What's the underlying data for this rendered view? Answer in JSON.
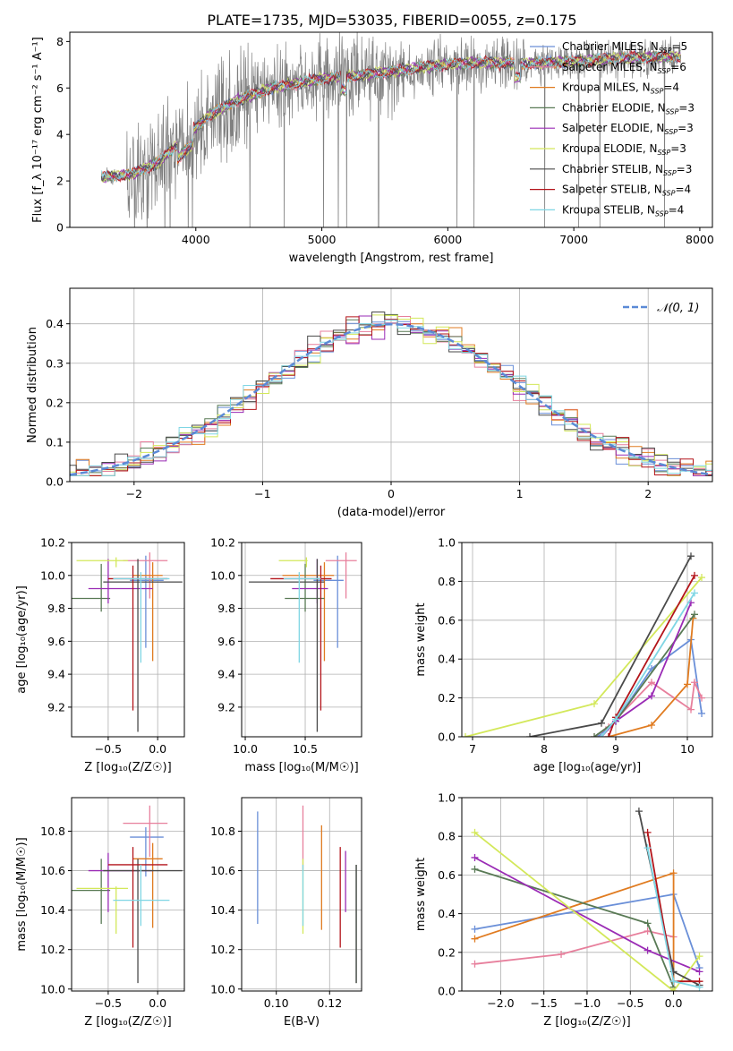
{
  "colors": {
    "chabrier_miles": "#6a8fd8",
    "salpeter_miles": "#e77f9c",
    "kroupa_miles": "#e07b20",
    "chabrier_elodie": "#597a55",
    "salpeter_elodie": "#9a2bb5",
    "kroupa_elodie": "#d3e85a",
    "chabrier_stelib": "#4a4a4a",
    "salpeter_stelib": "#b3141a",
    "kroupa_stelib": "#7fd6e4",
    "data": "#808080",
    "normal": "#5b8ad6"
  },
  "chart_data": [
    {
      "id": "spectrum",
      "type": "line",
      "title": "PLATE=1735, MJD=53035, FIBERID=0055, z=0.175",
      "xlabel": "wavelength [Angstrom, rest frame]",
      "ylabel": "Flux [f_λ 10⁻¹⁷ erg cm⁻² s⁻¹ A⁻¹]",
      "xlim": [
        3000,
        8100
      ],
      "ylim": [
        0,
        8.4
      ],
      "xticks": [
        4000,
        5000,
        6000,
        7000,
        8000
      ],
      "yticks": [
        0,
        2,
        4,
        6,
        8
      ],
      "legend_position": "top-right",
      "continuum": {
        "x": [
          3250,
          3500,
          3700,
          3900,
          4100,
          4300,
          4600,
          5000,
          5400,
          5800,
          6200,
          6600,
          7000,
          7400,
          7800
        ],
        "y": [
          2.15,
          2.3,
          2.8,
          3.8,
          4.8,
          5.4,
          6.0,
          6.4,
          6.6,
          6.9,
          7.1,
          7.05,
          7.15,
          7.3,
          7.35
        ]
      },
      "series": [
        {
          "name": "Chabrier MILES, N",
          "sub": "SSP",
          "suffix": "=5",
          "color_key": "chabrier_miles"
        },
        {
          "name": "Salpeter MILES, N",
          "sub": "SSP",
          "suffix": "=6",
          "color_key": "salpeter_miles"
        },
        {
          "name": "Kroupa MILES, N",
          "sub": "SSP",
          "suffix": "=4",
          "color_key": "kroupa_miles"
        },
        {
          "name": "Chabrier ELODIE, N",
          "sub": "SSP",
          "suffix": "=3",
          "color_key": "chabrier_elodie"
        },
        {
          "name": "Salpeter ELODIE, N",
          "sub": "SSP",
          "suffix": "=3",
          "color_key": "salpeter_elodie"
        },
        {
          "name": "Kroupa ELODIE, N",
          "sub": "SSP",
          "suffix": "=3",
          "color_key": "kroupa_elodie"
        },
        {
          "name": "Chabrier STELIB, N",
          "sub": "SSP",
          "suffix": "=3",
          "color_key": "chabrier_stelib"
        },
        {
          "name": "Salpeter STELIB, N",
          "sub": "SSP",
          "suffix": "=4",
          "color_key": "salpeter_stelib"
        },
        {
          "name": "Kroupa STELIB, N",
          "sub": "SSP",
          "suffix": "=4",
          "color_key": "kroupa_stelib"
        }
      ]
    },
    {
      "id": "residuals",
      "type": "histogram",
      "xlabel": "(data-model)/error",
      "ylabel": "Normed distribution",
      "xlim": [
        -2.5,
        2.5
      ],
      "ylim": [
        0,
        0.49
      ],
      "xticks": [
        -2,
        -1,
        0,
        1,
        2
      ],
      "yticks": [
        0.0,
        0.1,
        0.2,
        0.3,
        0.4
      ],
      "grid": true,
      "legend_position": "top-right",
      "normal_label": "𝒩(0, 1)",
      "bin_width": 0.1
    },
    {
      "id": "age_vs_Z",
      "type": "errorbar",
      "xlabel": "Z [log₁₀(Z/Z☉)]",
      "ylabel": "age  [log₁₀(age/yr)]",
      "xlim": [
        -0.87,
        0.27
      ],
      "ylim": [
        9.02,
        10.2
      ],
      "xticks": [
        -0.5,
        0.0
      ],
      "yticks": [
        9.2,
        9.4,
        9.6,
        9.8,
        10.0,
        10.2
      ],
      "grid": true
    },
    {
      "id": "age_vs_mass",
      "type": "errorbar",
      "xlabel": "mass [log₁₀(M/M☉)]",
      "xlim": [
        9.97,
        10.97
      ],
      "ylim": [
        9.02,
        10.2
      ],
      "xticks": [
        10.0,
        10.5
      ],
      "yticks": [
        9.2,
        9.4,
        9.6,
        9.8,
        10.0,
        10.2
      ],
      "grid": true
    },
    {
      "id": "massweight_vs_age",
      "type": "line",
      "xlabel": "age  [log₁₀(age/yr)]",
      "ylabel": "mass weight",
      "xlim": [
        6.85,
        10.35
      ],
      "ylim": [
        0,
        1.0
      ],
      "xticks": [
        7,
        8,
        9,
        10
      ],
      "yticks": [
        0.0,
        0.2,
        0.4,
        0.6,
        0.8,
        1.0
      ],
      "grid": true
    },
    {
      "id": "mass_vs_Z",
      "type": "errorbar",
      "xlabel": "Z [log₁₀(Z/Z☉)]",
      "ylabel": "mass [log₁₀(M/M☉)]",
      "xlim": [
        -0.87,
        0.27
      ],
      "ylim": [
        9.99,
        10.97
      ],
      "xticks": [
        -0.5,
        0.0
      ],
      "yticks": [
        10.0,
        10.2,
        10.4,
        10.6,
        10.8
      ],
      "grid": true
    },
    {
      "id": "mass_vs_ebv",
      "type": "errorbar",
      "xlabel": "E(B-V)",
      "xlim": [
        0.087,
        0.132
      ],
      "ylim": [
        9.99,
        10.97
      ],
      "xticks": [
        0.1,
        0.12
      ],
      "yticks": [
        10.0,
        10.2,
        10.4,
        10.6,
        10.8
      ],
      "grid": true
    },
    {
      "id": "massweight_vs_Z",
      "type": "line",
      "xlabel": "Z [log₁₀(Z/Z☉)]",
      "ylabel": "mass weight",
      "xlim": [
        -2.45,
        0.45
      ],
      "ylim": [
        0,
        1.0
      ],
      "xticks": [
        -2.0,
        -1.5,
        -1.0,
        -0.5,
        0.0
      ],
      "yticks": [
        0.0,
        0.2,
        0.4,
        0.6,
        0.8,
        1.0
      ],
      "grid": true
    }
  ],
  "fits": [
    {
      "key": "chabrier_miles",
      "age": 9.97,
      "age_lo": 9.56,
      "age_hi": 10.12,
      "z": -0.12,
      "z_lo": -0.28,
      "z_hi": 0.06,
      "mass": 10.77,
      "mass_lo": 10.57,
      "mass_hi": 10.82,
      "ebv": 0.093,
      "ebv_lo": 10.33,
      "ebv_hi": 10.9,
      "ages": [
        8.75,
        9.0,
        9.5,
        10.05,
        10.2
      ],
      "aw": [
        0.0,
        0.08,
        0.35,
        0.5,
        0.12
      ],
      "zs": [
        -2.3,
        0.0,
        0.3
      ],
      "zw": [
        0.32,
        0.5,
        0.12
      ]
    },
    {
      "key": "salpeter_miles",
      "age": 10.09,
      "age_lo": 9.86,
      "age_hi": 10.14,
      "z": -0.08,
      "z_lo": -0.35,
      "z_hi": 0.1,
      "mass": 10.84,
      "mass_lo": 10.67,
      "mass_hi": 10.93,
      "ebv": 0.11,
      "ebv_lo": 10.6,
      "ebv_hi": 10.93,
      "ages": [
        8.7,
        8.9,
        9.5,
        10.05,
        10.1,
        10.2
      ],
      "aw": [
        0.0,
        0.05,
        0.28,
        0.14,
        0.28,
        0.2
      ],
      "zs": [
        -2.3,
        -1.3,
        -0.3,
        0.0
      ],
      "zw": [
        0.14,
        0.19,
        0.31,
        0.28
      ]
    },
    {
      "key": "kroupa_miles",
      "age": 10.0,
      "age_lo": 9.48,
      "age_hi": 10.08,
      "z": -0.05,
      "z_lo": -0.25,
      "z_hi": 0.05,
      "mass": 10.66,
      "mass_lo": 10.31,
      "mass_hi": 10.74,
      "ebv": 0.117,
      "ebv_lo": 10.3,
      "ebv_hi": 10.83,
      "ages": [
        8.9,
        9.5,
        10.0,
        10.08
      ],
      "aw": [
        0.0,
        0.06,
        0.27,
        0.61
      ],
      "zs": [
        -2.3,
        0.0,
        0.0
      ],
      "zw": [
        0.27,
        0.61,
        0.0
      ]
    },
    {
      "key": "chabrier_elodie",
      "age": 9.86,
      "age_lo": 9.78,
      "age_hi": 10.07,
      "z": -0.57,
      "z_lo": -0.87,
      "z_hi": -0.48,
      "mass": 10.5,
      "mass_lo": 10.33,
      "mass_hi": 10.66,
      "ebv": 0.13,
      "ebv_lo": 10.03,
      "ebv_hi": 10.63,
      "ages": [
        8.7,
        9.0,
        10.1
      ],
      "aw": [
        0.0,
        0.08,
        0.63
      ],
      "zs": [
        -2.3,
        -0.3,
        0.0
      ],
      "zw": [
        0.63,
        0.35,
        0.02
      ]
    },
    {
      "key": "salpeter_elodie",
      "age": 9.92,
      "age_lo": 9.83,
      "age_hi": 10.1,
      "z": -0.5,
      "z_lo": -0.7,
      "z_hi": -0.05,
      "mass": 10.6,
      "mass_lo": 10.39,
      "mass_hi": 10.69,
      "ebv": 0.126,
      "ebv_lo": 10.39,
      "ebv_hi": 10.7,
      "ages": [
        8.8,
        9.0,
        9.5,
        10.05
      ],
      "aw": [
        0.0,
        0.08,
        0.21,
        0.69
      ],
      "zs": [
        -2.3,
        -0.3,
        0.3
      ],
      "zw": [
        0.69,
        0.21,
        0.1
      ]
    },
    {
      "key": "kroupa_elodie",
      "age": 10.09,
      "age_lo": 10.05,
      "age_hi": 10.11,
      "z": -0.42,
      "z_lo": -0.82,
      "z_hi": -0.3,
      "mass": 10.51,
      "mass_lo": 10.28,
      "mass_hi": 10.52,
      "ebv": 0.11,
      "ebv_lo": 10.28,
      "ebv_hi": 10.66,
      "ages": [
        6.9,
        8.7,
        10.2
      ],
      "aw": [
        0.0,
        0.17,
        0.82
      ],
      "zs": [
        -2.3,
        0.0,
        0.3
      ],
      "zw": [
        0.82,
        0.0,
        0.18
      ]
    },
    {
      "key": "chabrier_stelib",
      "age": 9.96,
      "age_lo": 9.05,
      "age_hi": 10.1,
      "z": -0.2,
      "z_lo": -0.55,
      "z_hi": 0.25,
      "mass": 10.6,
      "mass_lo": 10.03,
      "mass_hi": 10.66,
      "ebv": 0.13,
      "ebv_lo": 10.03,
      "ebv_hi": 10.63,
      "ages": [
        7.8,
        8.8,
        10.05
      ],
      "aw": [
        0.0,
        0.07,
        0.93
      ],
      "zs": [
        -0.4,
        0.0,
        0.3
      ],
      "zw": [
        0.93,
        0.1,
        0.03
      ]
    },
    {
      "key": "salpeter_stelib",
      "age": 9.98,
      "age_lo": 9.18,
      "age_hi": 10.06,
      "z": -0.25,
      "z_lo": -0.5,
      "z_hi": 0.1,
      "mass": 10.63,
      "mass_lo": 10.21,
      "mass_hi": 10.72,
      "ebv": 0.124,
      "ebv_lo": 10.21,
      "ebv_hi": 10.72,
      "ages": [
        8.9,
        9.0,
        10.1
      ],
      "aw": [
        0.0,
        0.1,
        0.83
      ],
      "zs": [
        -0.3,
        0.0,
        0.3
      ],
      "zw": [
        0.82,
        0.05,
        0.05
      ]
    },
    {
      "key": "kroupa_stelib",
      "age": 9.98,
      "age_lo": 9.47,
      "age_hi": 10.02,
      "z": -0.17,
      "z_lo": -0.45,
      "z_hi": 0.12,
      "mass": 10.45,
      "mass_lo": 10.32,
      "mass_hi": 10.63,
      "ebv": 0.11,
      "ebv_lo": 10.32,
      "ebv_hi": 10.63,
      "ages": [
        8.8,
        9.0,
        10.1
      ],
      "aw": [
        0.0,
        0.09,
        0.74
      ],
      "zs": [
        -0.3,
        0.0,
        0.3
      ],
      "zw": [
        0.74,
        0.05,
        0.02
      ]
    }
  ]
}
